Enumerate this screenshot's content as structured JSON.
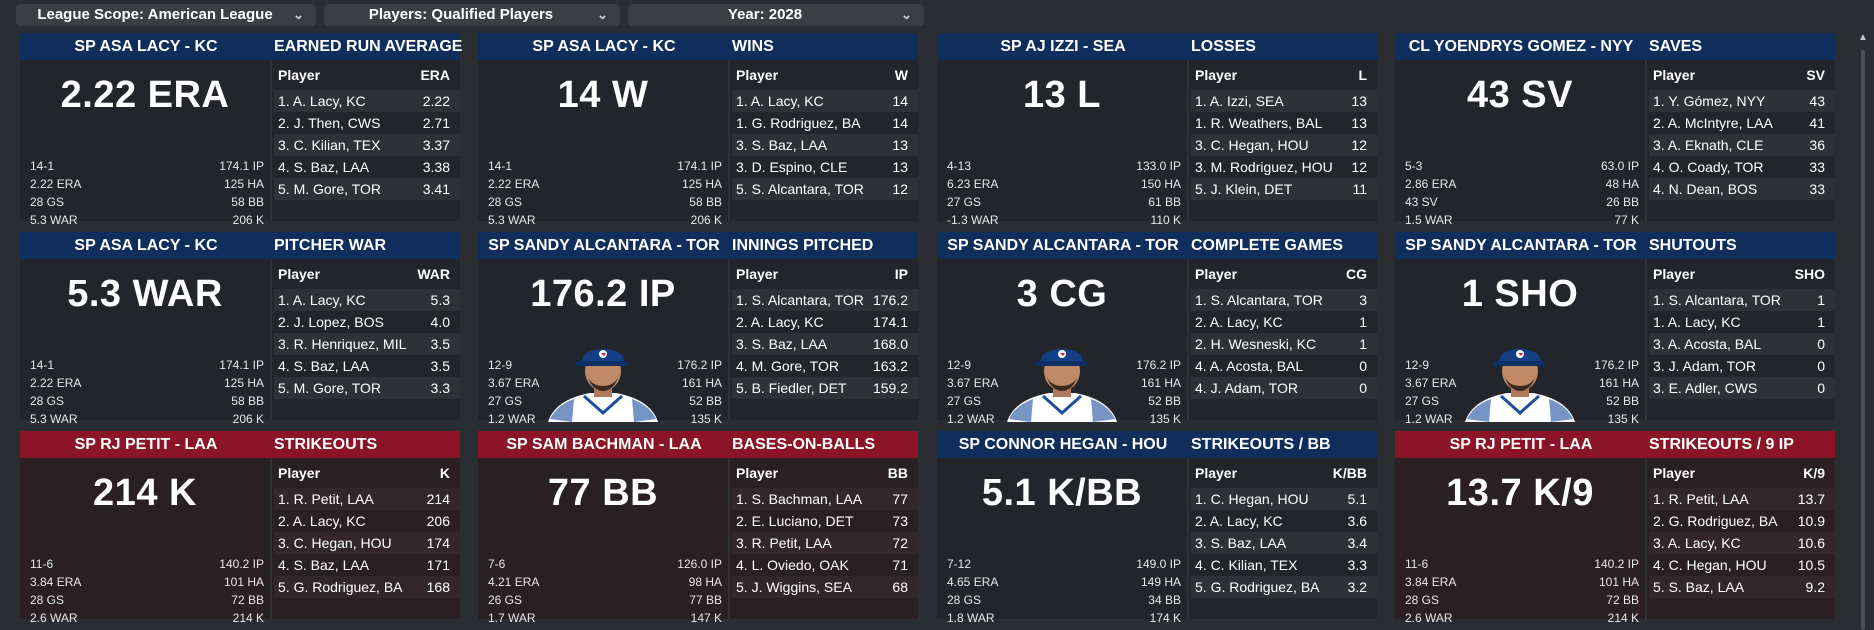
{
  "filters": [
    {
      "label": "League Scope: American League"
    },
    {
      "label": "Players: Qualified Players"
    },
    {
      "label": "Year: 2028"
    }
  ],
  "cards": [
    {
      "player": "SP ASA LACY - KC",
      "title": "EARNED RUN AVERAGE",
      "big": "2.22 ERA",
      "team": "blue",
      "portrait": false,
      "lines": [
        [
          "14-1",
          "174.1 IP"
        ],
        [
          "2.22 ERA",
          "125 HA"
        ],
        [
          "28 GS",
          "58 BB"
        ],
        [
          "5.3 WAR",
          "206 K"
        ]
      ],
      "col_player": "Player",
      "col_stat": "ERA",
      "rows": [
        [
          "1. A. Lacy, KC",
          "2.22"
        ],
        [
          "2. J. Then, CWS",
          "2.71"
        ],
        [
          "3. C. Kilian, TEX",
          "3.37"
        ],
        [
          "4. S. Baz, LAA",
          "3.38"
        ],
        [
          "5. M. Gore, TOR",
          "3.41"
        ]
      ]
    },
    {
      "player": "SP ASA LACY - KC",
      "title": "WINS",
      "big": "14 W",
      "team": "blue",
      "portrait": false,
      "lines": [
        [
          "14-1",
          "174.1 IP"
        ],
        [
          "2.22 ERA",
          "125 HA"
        ],
        [
          "28 GS",
          "58 BB"
        ],
        [
          "5.3 WAR",
          "206 K"
        ]
      ],
      "col_player": "Player",
      "col_stat": "W",
      "rows": [
        [
          "1. A. Lacy, KC",
          "14"
        ],
        [
          "1. G. Rodriguez, BA",
          "14"
        ],
        [
          "3. S. Baz, LAA",
          "13"
        ],
        [
          "3. D. Espino, CLE",
          "13"
        ],
        [
          "5. S. Alcantara, TOR",
          "12"
        ]
      ]
    },
    {
      "player": "SP AJ IZZI - SEA",
      "title": "LOSSES",
      "big": "13 L",
      "team": "blue",
      "portrait": false,
      "lines": [
        [
          "4-13",
          "133.0 IP"
        ],
        [
          "6.23 ERA",
          "150 HA"
        ],
        [
          "27 GS",
          "61 BB"
        ],
        [
          "-1.3 WAR",
          "110 K"
        ]
      ],
      "col_player": "Player",
      "col_stat": "L",
      "rows": [
        [
          "1. A. Izzi, SEA",
          "13"
        ],
        [
          "1. R. Weathers, BAL",
          "13"
        ],
        [
          "3. C. Hegan, HOU",
          "12"
        ],
        [
          "3. M. Rodriguez, HOU",
          "12"
        ],
        [
          "5. J. Klein, DET",
          "11"
        ]
      ]
    },
    {
      "player": "CL YOENDRYS GOMEZ - NYY",
      "title": "SAVES",
      "big": "43 SV",
      "team": "blue",
      "portrait": false,
      "lines": [
        [
          "5-3",
          "63.0 IP"
        ],
        [
          "2.86 ERA",
          "48 HA"
        ],
        [
          "43 SV",
          "26 BB"
        ],
        [
          "1.5 WAR",
          "77 K"
        ]
      ],
      "col_player": "Player",
      "col_stat": "SV",
      "rows": [
        [
          "1. Y. Gómez, NYY",
          "43"
        ],
        [
          "2. A. McIntyre, LAA",
          "41"
        ],
        [
          "3. A. Eknath, CLE",
          "36"
        ],
        [
          "4. O. Coady, TOR",
          "33"
        ],
        [
          "4. N. Dean, BOS",
          "33"
        ]
      ]
    },
    {
      "player": "SP ASA LACY - KC",
      "title": "PITCHER WAR",
      "big": "5.3 WAR",
      "team": "blue",
      "portrait": false,
      "lines": [
        [
          "14-1",
          "174.1 IP"
        ],
        [
          "2.22 ERA",
          "125 HA"
        ],
        [
          "28 GS",
          "58 BB"
        ],
        [
          "5.3 WAR",
          "206 K"
        ]
      ],
      "col_player": "Player",
      "col_stat": "WAR",
      "rows": [
        [
          "1. A. Lacy, KC",
          "5.3"
        ],
        [
          "2. J. Lopez, BOS",
          "4.0"
        ],
        [
          "3. R. Henriquez, MIL",
          "3.5"
        ],
        [
          "4. S. Baz, LAA",
          "3.5"
        ],
        [
          "5. M. Gore, TOR",
          "3.3"
        ]
      ]
    },
    {
      "player": "SP SANDY ALCANTARA - TOR",
      "title": "INNINGS PITCHED",
      "big": "176.2 IP",
      "team": "blue",
      "portrait": true,
      "lines": [
        [
          "12-9",
          "176.2 IP"
        ],
        [
          "3.67 ERA",
          "161 HA"
        ],
        [
          "27 GS",
          "52 BB"
        ],
        [
          "1.2 WAR",
          "135 K"
        ]
      ],
      "col_player": "Player",
      "col_stat": "IP",
      "rows": [
        [
          "1. S. Alcantara, TOR",
          "176.2"
        ],
        [
          "2. A. Lacy, KC",
          "174.1"
        ],
        [
          "3. S. Baz, LAA",
          "168.0"
        ],
        [
          "4. M. Gore, TOR",
          "163.2"
        ],
        [
          "5. B. Fiedler, DET",
          "159.2"
        ]
      ]
    },
    {
      "player": "SP SANDY ALCANTARA - TOR",
      "title": "COMPLETE GAMES",
      "big": "3 CG",
      "team": "blue",
      "portrait": true,
      "lines": [
        [
          "12-9",
          "176.2 IP"
        ],
        [
          "3.67 ERA",
          "161 HA"
        ],
        [
          "27 GS",
          "52 BB"
        ],
        [
          "1.2 WAR",
          "135 K"
        ]
      ],
      "col_player": "Player",
      "col_stat": "CG",
      "rows": [
        [
          "1. S. Alcantara, TOR",
          "3"
        ],
        [
          "2. A. Lacy, KC",
          "1"
        ],
        [
          "2. H. Wesneski, KC",
          "1"
        ],
        [
          "4. A. Acosta, BAL",
          "0"
        ],
        [
          "4. J. Adam, TOR",
          "0"
        ]
      ]
    },
    {
      "player": "SP SANDY ALCANTARA - TOR",
      "title": "SHUTOUTS",
      "big": "1 SHO",
      "team": "blue",
      "portrait": true,
      "lines": [
        [
          "12-9",
          "176.2 IP"
        ],
        [
          "3.67 ERA",
          "161 HA"
        ],
        [
          "27 GS",
          "52 BB"
        ],
        [
          "1.2 WAR",
          "135 K"
        ]
      ],
      "col_player": "Player",
      "col_stat": "SHO",
      "rows": [
        [
          "1. S. Alcantara, TOR",
          "1"
        ],
        [
          "1. A. Lacy, KC",
          "1"
        ],
        [
          "3. A. Acosta, BAL",
          "0"
        ],
        [
          "3. J. Adam, TOR",
          "0"
        ],
        [
          "3. E. Adler, CWS",
          "0"
        ]
      ]
    },
    {
      "player": "SP RJ PETIT - LAA",
      "title": "STRIKEOUTS",
      "big": "214 K",
      "team": "red",
      "portrait": false,
      "lines": [
        [
          "11-6",
          "140.2 IP"
        ],
        [
          "3.84 ERA",
          "101 HA"
        ],
        [
          "28 GS",
          "72 BB"
        ],
        [
          "2.6 WAR",
          "214 K"
        ]
      ],
      "col_player": "Player",
      "col_stat": "K",
      "rows": [
        [
          "1. R. Petit, LAA",
          "214"
        ],
        [
          "2. A. Lacy, KC",
          "206"
        ],
        [
          "3. C. Hegan, HOU",
          "174"
        ],
        [
          "4. S. Baz, LAA",
          "171"
        ],
        [
          "5. G. Rodriguez, BA",
          "168"
        ]
      ]
    },
    {
      "player": "SP SAM BACHMAN - LAA",
      "title": "BASES-ON-BALLS",
      "big": "77 BB",
      "team": "red",
      "portrait": false,
      "lines": [
        [
          "7-6",
          "126.0 IP"
        ],
        [
          "4.21 ERA",
          "98 HA"
        ],
        [
          "26 GS",
          "77 BB"
        ],
        [
          "1.7 WAR",
          "147 K"
        ]
      ],
      "col_player": "Player",
      "col_stat": "BB",
      "rows": [
        [
          "1. S. Bachman, LAA",
          "77"
        ],
        [
          "2. E. Luciano, DET",
          "73"
        ],
        [
          "3. R. Petit, LAA",
          "72"
        ],
        [
          "4. L. Oviedo, OAK",
          "71"
        ],
        [
          "5. J. Wiggins, SEA",
          "68"
        ]
      ]
    },
    {
      "player": "SP CONNOR HEGAN - HOU",
      "title": "STRIKEOUTS / BB",
      "big": "5.1 K/BB",
      "team": "blue",
      "portrait": false,
      "lines": [
        [
          "7-12",
          "149.0 IP"
        ],
        [
          "4.65 ERA",
          "149 HA"
        ],
        [
          "28 GS",
          "34 BB"
        ],
        [
          "1.8 WAR",
          "174 K"
        ]
      ],
      "col_player": "Player",
      "col_stat": "K/BB",
      "rows": [
        [
          "1. C. Hegan, HOU",
          "5.1"
        ],
        [
          "2. A. Lacy, KC",
          "3.6"
        ],
        [
          "3. S. Baz, LAA",
          "3.4"
        ],
        [
          "4. C. Kilian, TEX",
          "3.3"
        ],
        [
          "5. G. Rodriguez, BA",
          "3.2"
        ]
      ]
    },
    {
      "player": "SP RJ PETIT - LAA",
      "title": "STRIKEOUTS / 9 IP",
      "big": "13.7 K/9",
      "team": "red",
      "portrait": false,
      "lines": [
        [
          "11-6",
          "140.2 IP"
        ],
        [
          "3.84 ERA",
          "101 HA"
        ],
        [
          "28 GS",
          "72 BB"
        ],
        [
          "2.6 WAR",
          "214 K"
        ]
      ],
      "col_player": "Player",
      "col_stat": "K/9",
      "rows": [
        [
          "1. R. Petit, LAA",
          "13.7"
        ],
        [
          "2. G. Rodriguez, BA",
          "10.9"
        ],
        [
          "3. A. Lacy, KC",
          "10.6"
        ],
        [
          "4. C. Hegan, HOU",
          "10.5"
        ],
        [
          "5. S. Baz, LAA",
          "9.2"
        ]
      ]
    }
  ]
}
